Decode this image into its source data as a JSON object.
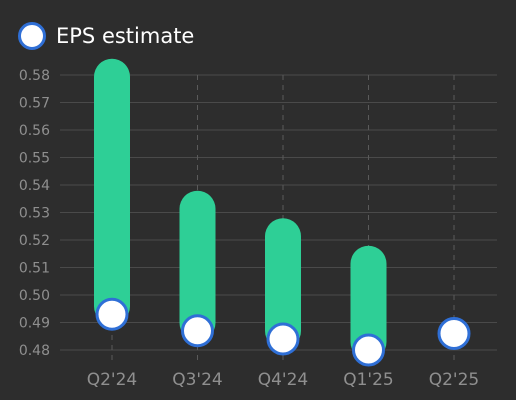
{
  "legend": {
    "label": "EPS estimate"
  },
  "colors": {
    "background": "#2d2d2d",
    "bar": "#2ecf96",
    "marker_fill": "#ffffff",
    "marker_border": "#2f6fd6",
    "grid_solid": "#4a4a4a",
    "grid_dashed": "#5a5a5a",
    "tick_text": "#8f8f8f",
    "legend_text": "#ffffff"
  },
  "chart_data": {
    "type": "bar",
    "categories": [
      "Q2'24",
      "Q3'24",
      "Q4'24",
      "Q1'25",
      "Q2'25"
    ],
    "series": [
      {
        "name": "EPS estimate",
        "values": [
          0.493,
          0.487,
          0.484,
          0.48,
          0.486
        ]
      }
    ],
    "range_high": [
      0.583,
      0.535,
      0.525,
      0.515,
      null
    ],
    "ylim": [
      0.48,
      0.58
    ],
    "yticks": [
      0.58,
      0.57,
      0.56,
      0.55,
      0.54,
      0.53,
      0.52,
      0.51,
      0.5,
      0.49,
      0.48
    ],
    "ytick_labels": [
      "0.58",
      "0.57",
      "0.56",
      "0.55",
      "0.54",
      "0.53",
      "0.52",
      "0.51",
      "0.50",
      "0.49",
      "0.48"
    ],
    "xlabel": "",
    "ylabel": "",
    "grid": true,
    "legend_position": "top-left"
  }
}
